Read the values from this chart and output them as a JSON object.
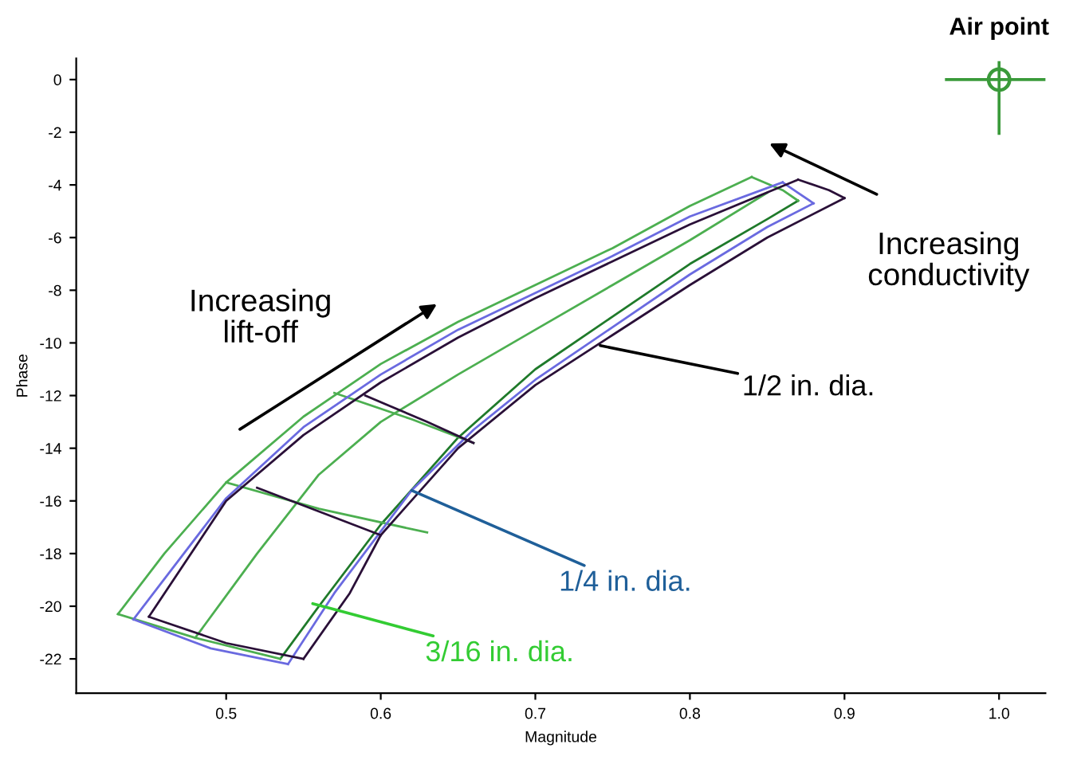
{
  "chart_data": {
    "type": "line",
    "xlabel": "Magnitude",
    "ylabel": "Phase",
    "xlim": [
      0.403,
      1.03
    ],
    "ylim": [
      -23.3,
      0.8
    ],
    "xticks": [
      0.5,
      0.6,
      0.7,
      0.8,
      0.9,
      {
        "value": 1.0,
        "label": "1.0"
      }
    ],
    "yticks": [
      0,
      -2,
      -4,
      -6,
      -8,
      -10,
      -12,
      -14,
      -16,
      -18,
      -20,
      -22
    ],
    "grid": false,
    "legend": false,
    "marker": "none",
    "line_style": "solid",
    "series": [
      {
        "color": "#4caf50",
        "x": [
          0.43,
          0.46,
          0.5,
          0.55,
          0.6,
          0.65,
          0.7,
          0.75,
          0.8,
          0.84
        ],
        "values": [
          -20.3,
          -18.0,
          -15.3,
          -12.8,
          -10.8,
          -9.2,
          -7.8,
          -6.4,
          -4.8,
          -3.7
        ]
      },
      {
        "color": "#4caf50",
        "x": [
          0.48,
          0.52,
          0.56,
          0.6,
          0.65,
          0.7,
          0.75,
          0.8,
          0.85
        ],
        "values": [
          -21.2,
          -18.0,
          -15.0,
          -13.0,
          -11.2,
          -9.5,
          -7.8,
          -6.1,
          -4.3
        ]
      },
      {
        "color": "#1f7a2a",
        "x": [
          0.535,
          0.56,
          0.6,
          0.65,
          0.7,
          0.75,
          0.8,
          0.85,
          0.87
        ],
        "values": [
          -22.0,
          -20.0,
          -16.9,
          -13.6,
          -11.0,
          -9.0,
          -7.0,
          -5.3,
          -4.6
        ]
      },
      {
        "color": "#4caf50",
        "x": [
          0.43,
          0.48,
          0.535
        ],
        "values": [
          -20.3,
          -21.2,
          -22.0
        ]
      },
      {
        "color": "#4caf50",
        "x": [
          0.5,
          0.56,
          0.63
        ],
        "values": [
          -15.3,
          -16.3,
          -17.2
        ]
      },
      {
        "color": "#4caf50",
        "x": [
          0.57,
          0.62,
          0.66
        ],
        "values": [
          -11.9,
          -12.9,
          -13.8
        ]
      },
      {
        "color": "#4caf50",
        "x": [
          0.84,
          0.86,
          0.87
        ],
        "values": [
          -3.7,
          -4.2,
          -4.6
        ]
      },
      {
        "color": "#6a6ae0",
        "x": [
          0.44,
          0.5,
          0.55,
          0.6,
          0.65,
          0.7,
          0.75,
          0.8,
          0.86
        ],
        "values": [
          -20.5,
          -15.9,
          -13.2,
          -11.2,
          -9.5,
          -8.1,
          -6.7,
          -5.2,
          -3.9
        ]
      },
      {
        "color": "#6a6ae0",
        "x": [
          0.54,
          0.57,
          0.62,
          0.66,
          0.7,
          0.75,
          0.8,
          0.85,
          0.88
        ],
        "values": [
          -22.2,
          -19.5,
          -15.6,
          -13.3,
          -11.4,
          -9.4,
          -7.4,
          -5.6,
          -4.7
        ]
      },
      {
        "color": "#6a6ae0",
        "x": [
          0.44,
          0.49,
          0.54
        ],
        "values": [
          -20.5,
          -21.6,
          -22.2
        ]
      },
      {
        "color": "#6a6ae0",
        "x": [
          0.86,
          0.87,
          0.88
        ],
        "values": [
          -3.9,
          -4.3,
          -4.7
        ]
      },
      {
        "color": "#2a1038",
        "x": [
          0.45,
          0.5,
          0.55,
          0.6,
          0.65,
          0.7,
          0.75,
          0.8,
          0.87
        ],
        "values": [
          -20.4,
          -16.0,
          -13.5,
          -11.5,
          -9.8,
          -8.3,
          -6.9,
          -5.5,
          -3.8
        ]
      },
      {
        "color": "#2a1038",
        "x": [
          0.55,
          0.58,
          0.6,
          0.65,
          0.7,
          0.75,
          0.8,
          0.85,
          0.9
        ],
        "values": [
          -22.0,
          -19.5,
          -17.3,
          -14.0,
          -11.6,
          -9.7,
          -7.8,
          -6.0,
          -4.5
        ]
      },
      {
        "color": "#2a1038",
        "x": [
          0.45,
          0.5,
          0.55
        ],
        "values": [
          -20.4,
          -21.4,
          -22.0
        ]
      },
      {
        "color": "#2a1038",
        "x": [
          0.52,
          0.56,
          0.6
        ],
        "values": [
          -15.5,
          -16.4,
          -17.3
        ]
      },
      {
        "color": "#2a1038",
        "x": [
          0.59,
          0.63,
          0.66
        ],
        "values": [
          -12.0,
          -13.0,
          -13.8
        ]
      },
      {
        "color": "#2a1038",
        "x": [
          0.87,
          0.89,
          0.9
        ],
        "values": [
          -3.8,
          -4.2,
          -4.5
        ]
      },
      {
        "type": "scatter",
        "name": "Air point",
        "color": "#3a9a3a",
        "marker": "circle",
        "x": [
          1.0
        ],
        "values": [
          0
        ],
        "xerrors": [
          0.035
        ],
        "errors": [
          [
            -2.1,
            0.7
          ]
        ]
      }
    ],
    "annotations": [
      {
        "text": "1/2 in. dia.",
        "x": 0.742,
        "y": -10.1
      },
      {
        "text": "1/4 in. dia.",
        "x": 0.62,
        "y": -15.6
      },
      {
        "text": "3/16 in. dia.",
        "x": 0.556,
        "y": -19.9
      },
      "Increasing\nlift-off",
      "Increasing\nconductivity"
    ]
  }
}
